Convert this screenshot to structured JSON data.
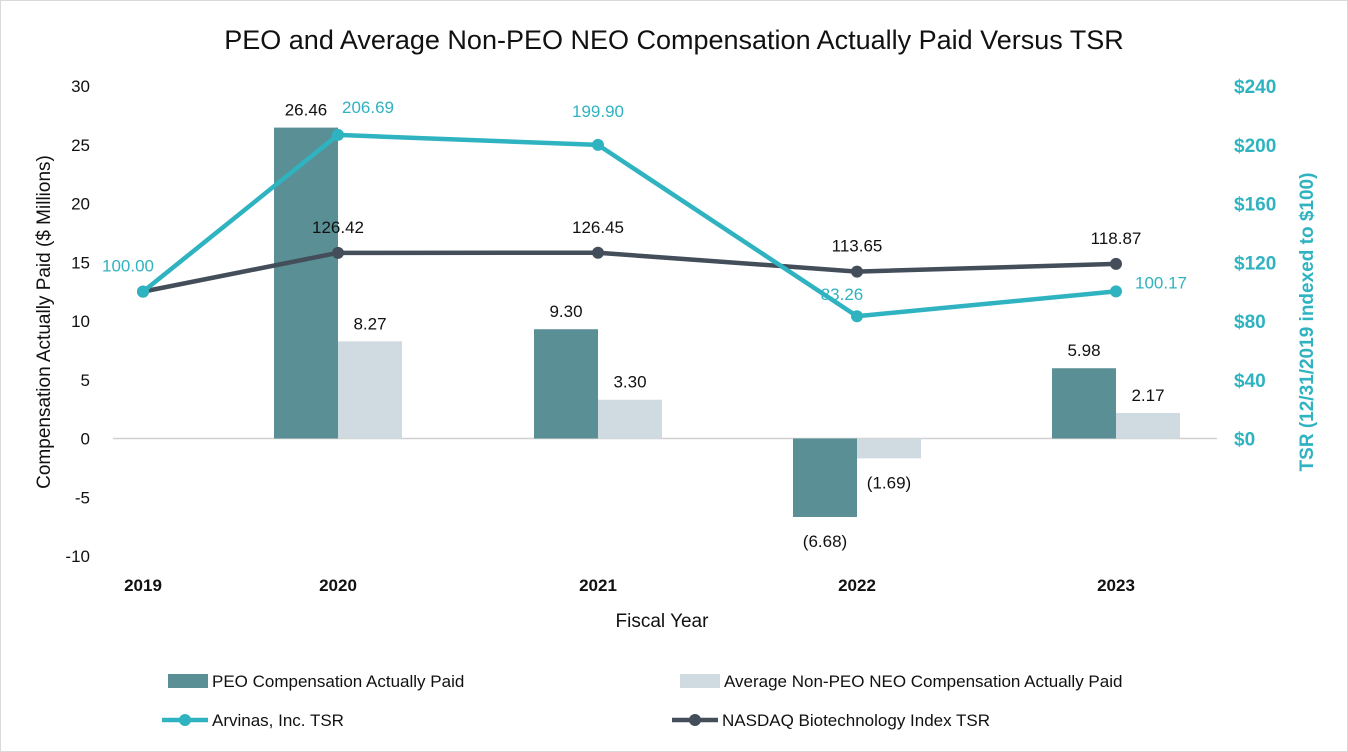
{
  "chart_data": {
    "type": "bar",
    "title": "PEO and Average Non-PEO NEO Compensation Actually Paid Versus TSR",
    "xlabel": "Fiscal Year",
    "ylabel": "Compensation Actually Paid ($ Millions)",
    "y2label": "TSR (12/31/2019 indexed to $100)",
    "categories": [
      "2019",
      "2020",
      "2021",
      "2022",
      "2023"
    ],
    "ylim": [
      -10,
      30
    ],
    "yticks": [
      "30",
      "25",
      "20",
      "15",
      "10",
      "5",
      "0",
      "-5",
      "-10"
    ],
    "ytick_values": [
      30,
      25,
      20,
      15,
      10,
      5,
      0,
      -5,
      -10
    ],
    "y2lim": [
      0,
      240
    ],
    "y2ticks": [
      "$240",
      "$200",
      "$160",
      "$120",
      "$80",
      "$40",
      "$0"
    ],
    "y2tick_values": [
      240,
      200,
      160,
      120,
      80,
      40,
      0
    ],
    "bar_series": [
      {
        "name": "PEO Compensation Actually Paid",
        "color": "#5a8f96",
        "values": [
          null,
          26.46,
          9.3,
          -6.68,
          5.98
        ],
        "labels": [
          "",
          "26.46",
          "9.30",
          "(6.68)",
          "5.98"
        ]
      },
      {
        "name": "Average Non-PEO NEO Compensation Actually Paid",
        "color": "#cfdbe0",
        "values": [
          null,
          8.27,
          3.3,
          -1.69,
          2.17
        ],
        "labels": [
          "",
          "8.27",
          "3.30",
          "(1.69)",
          "2.17"
        ]
      }
    ],
    "line_series": [
      {
        "name": "Arvinas, Inc. TSR",
        "color": "#2fb3c0",
        "values": [
          100.0,
          206.69,
          199.9,
          83.26,
          100.17
        ],
        "labels": [
          "100.00",
          "206.69",
          "199.90",
          "83.26",
          "100.17"
        ]
      },
      {
        "name": "NASDAQ Biotechnology Index TSR",
        "color": "#434e5a",
        "values": [
          100.0,
          126.42,
          126.45,
          113.65,
          118.87
        ],
        "labels": [
          "",
          "126.42",
          "126.45",
          "113.65",
          "118.87"
        ]
      }
    ],
    "legend": [
      "PEO Compensation Actually Paid",
      "Average Non-PEO NEO Compensation Actually Paid",
      "Arvinas, Inc. TSR",
      "NASDAQ Biotechnology Index TSR"
    ]
  }
}
